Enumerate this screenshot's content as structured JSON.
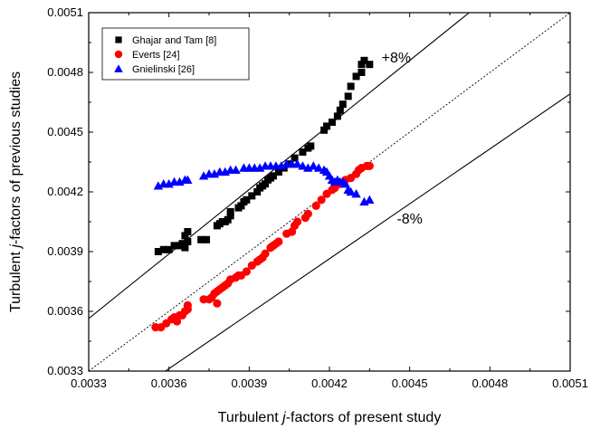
{
  "chart_data": {
    "type": "scatter",
    "xlabel_parts": [
      "Turbulent ",
      "j",
      "-factors of present study"
    ],
    "ylabel_parts": [
      "Turbulent ",
      "j",
      "-factors of previous studies"
    ],
    "xlim": [
      0.0033,
      0.0051
    ],
    "ylim": [
      0.0033,
      0.0051
    ],
    "xticks": [
      "0.0033",
      "0.0036",
      "0.0039",
      "0.0042",
      "0.0045",
      "0.0048",
      "0.0051"
    ],
    "yticks": [
      "0.0033",
      "0.0036",
      "0.0039",
      "0.0042",
      "0.0045",
      "0.0048",
      "0.0051"
    ],
    "grid": false,
    "legend_position": "top-left",
    "lines": [
      {
        "label": "+8%",
        "factor": 1.08,
        "style": "solid"
      },
      {
        "label": "",
        "factor": 1.0,
        "style": "dotted"
      },
      {
        "label": "-8%",
        "factor": 0.92,
        "style": "solid"
      }
    ],
    "series": [
      {
        "name": "Ghajar and Tam [8]",
        "marker": "square",
        "color": "#000000",
        "points": [
          [
            0.00356,
            0.0039
          ],
          [
            0.00358,
            0.00391
          ],
          [
            0.0036,
            0.00391
          ],
          [
            0.00362,
            0.00393
          ],
          [
            0.00364,
            0.00393
          ],
          [
            0.00365,
            0.00394
          ],
          [
            0.00366,
            0.00392
          ],
          [
            0.00366,
            0.00398
          ],
          [
            0.00367,
            0.00395
          ],
          [
            0.00367,
            0.004
          ],
          [
            0.00372,
            0.00396
          ],
          [
            0.00374,
            0.00396
          ],
          [
            0.00378,
            0.00403
          ],
          [
            0.00379,
            0.00404
          ],
          [
            0.0038,
            0.00405
          ],
          [
            0.00381,
            0.00405
          ],
          [
            0.00382,
            0.00406
          ],
          [
            0.00383,
            0.00408
          ],
          [
            0.00383,
            0.0041
          ],
          [
            0.00386,
            0.00412
          ],
          [
            0.00387,
            0.00413
          ],
          [
            0.00388,
            0.00415
          ],
          [
            0.00389,
            0.00416
          ],
          [
            0.00391,
            0.00418
          ],
          [
            0.00393,
            0.0042
          ],
          [
            0.00394,
            0.00422
          ],
          [
            0.00395,
            0.00423
          ],
          [
            0.00396,
            0.00424
          ],
          [
            0.00397,
            0.00426
          ],
          [
            0.00398,
            0.00427
          ],
          [
            0.00399,
            0.00428
          ],
          [
            0.00401,
            0.0043
          ],
          [
            0.00403,
            0.00432
          ],
          [
            0.00405,
            0.00434
          ],
          [
            0.00407,
            0.00437
          ],
          [
            0.0041,
            0.0044
          ],
          [
            0.00412,
            0.00442
          ],
          [
            0.00413,
            0.00443
          ],
          [
            0.00418,
            0.00451
          ],
          [
            0.00419,
            0.00453
          ],
          [
            0.00421,
            0.00455
          ],
          [
            0.00423,
            0.00458
          ],
          [
            0.00424,
            0.00461
          ],
          [
            0.00425,
            0.00464
          ],
          [
            0.00427,
            0.00468
          ],
          [
            0.00428,
            0.00473
          ],
          [
            0.0043,
            0.00478
          ],
          [
            0.00432,
            0.0048
          ],
          [
            0.00432,
            0.00484
          ],
          [
            0.00433,
            0.00486
          ],
          [
            0.00435,
            0.00484
          ]
        ]
      },
      {
        "name": "Everts [24]",
        "marker": "circle",
        "color": "#ff0000",
        "points": [
          [
            0.00355,
            0.00352
          ],
          [
            0.00357,
            0.00352
          ],
          [
            0.00359,
            0.00354
          ],
          [
            0.00361,
            0.00356
          ],
          [
            0.00362,
            0.00357
          ],
          [
            0.00363,
            0.00355
          ],
          [
            0.00364,
            0.00358
          ],
          [
            0.00365,
            0.00358
          ],
          [
            0.00366,
            0.0036
          ],
          [
            0.00367,
            0.00361
          ],
          [
            0.00367,
            0.00363
          ],
          [
            0.00373,
            0.00366
          ],
          [
            0.00375,
            0.00366
          ],
          [
            0.00376,
            0.00367
          ],
          [
            0.00377,
            0.00369
          ],
          [
            0.00378,
            0.00364
          ],
          [
            0.00378,
            0.0037
          ],
          [
            0.00379,
            0.00371
          ],
          [
            0.0038,
            0.00372
          ],
          [
            0.00381,
            0.00373
          ],
          [
            0.00382,
            0.00374
          ],
          [
            0.00383,
            0.00376
          ],
          [
            0.00385,
            0.00377
          ],
          [
            0.00386,
            0.00378
          ],
          [
            0.00387,
            0.00378
          ],
          [
            0.00389,
            0.0038
          ],
          [
            0.00391,
            0.00383
          ],
          [
            0.00393,
            0.00385
          ],
          [
            0.00394,
            0.00386
          ],
          [
            0.00395,
            0.00387
          ],
          [
            0.00396,
            0.00389
          ],
          [
            0.00398,
            0.00392
          ],
          [
            0.00399,
            0.00393
          ],
          [
            0.004,
            0.00394
          ],
          [
            0.00401,
            0.00395
          ],
          [
            0.00404,
            0.00399
          ],
          [
            0.00406,
            0.004
          ],
          [
            0.00407,
            0.00403
          ],
          [
            0.00408,
            0.00405
          ],
          [
            0.00411,
            0.00407
          ],
          [
            0.00412,
            0.00409
          ],
          [
            0.00415,
            0.00413
          ],
          [
            0.00417,
            0.00416
          ],
          [
            0.00419,
            0.00419
          ],
          [
            0.00421,
            0.00421
          ],
          [
            0.00422,
            0.00422
          ],
          [
            0.00424,
            0.00424
          ],
          [
            0.00426,
            0.00426
          ],
          [
            0.00428,
            0.00427
          ],
          [
            0.0043,
            0.00429
          ],
          [
            0.00431,
            0.00431
          ],
          [
            0.00432,
            0.00432
          ],
          [
            0.00434,
            0.00433
          ],
          [
            0.00435,
            0.00433
          ]
        ]
      },
      {
        "name": "Gnielinski [26]",
        "marker": "triangle",
        "color": "#0000ff",
        "points": [
          [
            0.00356,
            0.00423
          ],
          [
            0.00358,
            0.00424
          ],
          [
            0.0036,
            0.00424
          ],
          [
            0.00362,
            0.00425
          ],
          [
            0.00364,
            0.00425
          ],
          [
            0.00366,
            0.00426
          ],
          [
            0.00367,
            0.00426
          ],
          [
            0.00373,
            0.00428
          ],
          [
            0.00375,
            0.00429
          ],
          [
            0.00377,
            0.00429
          ],
          [
            0.00379,
            0.0043
          ],
          [
            0.00381,
            0.0043
          ],
          [
            0.00383,
            0.00431
          ],
          [
            0.00385,
            0.00431
          ],
          [
            0.00388,
            0.00432
          ],
          [
            0.0039,
            0.00432
          ],
          [
            0.00392,
            0.00432
          ],
          [
            0.00394,
            0.00432
          ],
          [
            0.00396,
            0.00433
          ],
          [
            0.00398,
            0.00433
          ],
          [
            0.004,
            0.00433
          ],
          [
            0.00402,
            0.00433
          ],
          [
            0.00404,
            0.00434
          ],
          [
            0.00406,
            0.00434
          ],
          [
            0.00408,
            0.00434
          ],
          [
            0.0041,
            0.00433
          ],
          [
            0.00412,
            0.00432
          ],
          [
            0.00414,
            0.00433
          ],
          [
            0.00416,
            0.00432
          ],
          [
            0.00418,
            0.00431
          ],
          [
            0.00419,
            0.0043
          ],
          [
            0.0042,
            0.00428
          ],
          [
            0.00421,
            0.00426
          ],
          [
            0.00422,
            0.00425
          ],
          [
            0.00423,
            0.00426
          ],
          [
            0.00424,
            0.00425
          ],
          [
            0.00425,
            0.00425
          ],
          [
            0.00426,
            0.00424
          ],
          [
            0.00427,
            0.00421
          ],
          [
            0.00428,
            0.0042
          ],
          [
            0.0043,
            0.00419
          ],
          [
            0.00433,
            0.00415
          ],
          [
            0.00435,
            0.00416
          ]
        ]
      }
    ]
  }
}
